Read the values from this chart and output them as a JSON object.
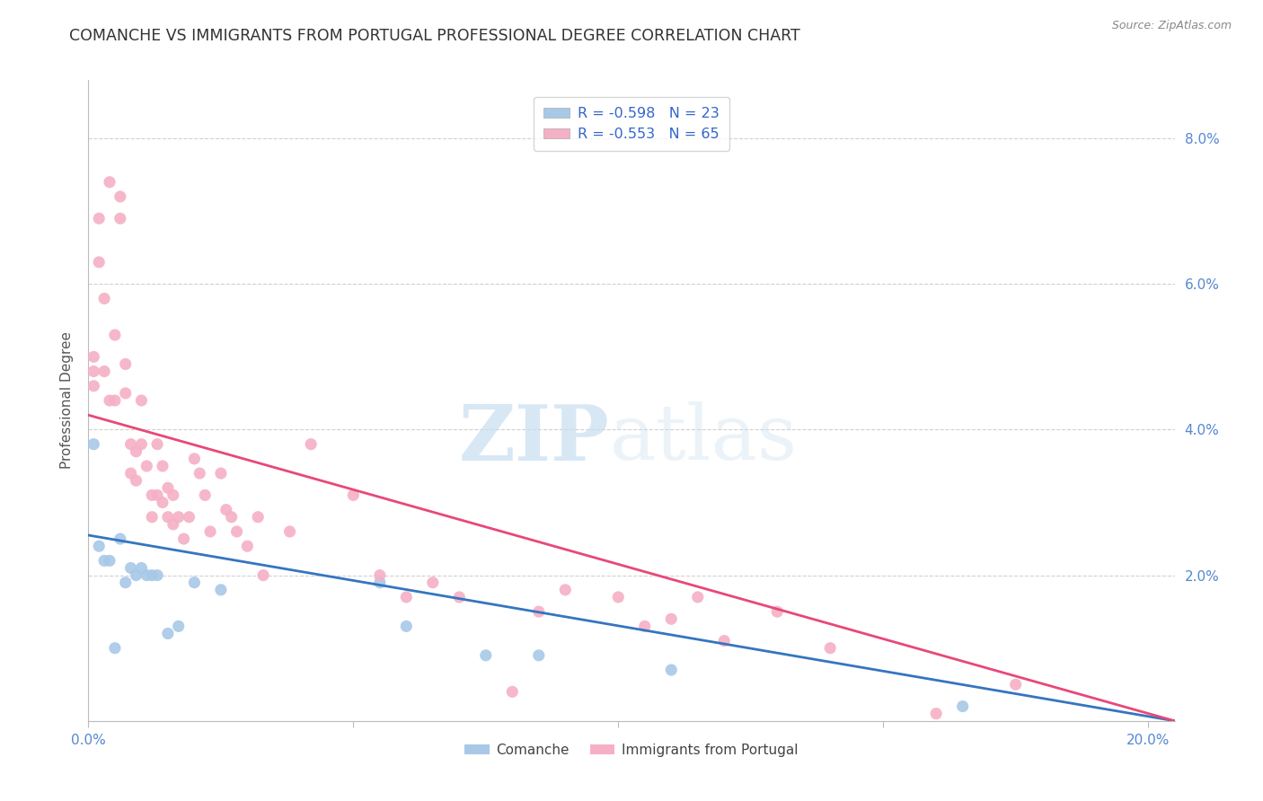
{
  "title": "COMANCHE VS IMMIGRANTS FROM PORTUGAL PROFESSIONAL DEGREE CORRELATION CHART",
  "source": "Source: ZipAtlas.com",
  "ylabel": "Professional Degree",
  "legend_blue_r": "R = -0.598",
  "legend_blue_n": "N = 23",
  "legend_pink_r": "R = -0.553",
  "legend_pink_n": "N = 65",
  "watermark_zip": "ZIP",
  "watermark_atlas": "atlas",
  "xlim": [
    0.0,
    0.205
  ],
  "ylim": [
    0.0,
    0.088
  ],
  "xticks": [
    0.0,
    0.05,
    0.1,
    0.15,
    0.2
  ],
  "xticklabels": [
    "0.0%",
    "",
    "",
    "",
    "20.0%"
  ],
  "yticks": [
    0.0,
    0.02,
    0.04,
    0.06,
    0.08
  ],
  "yticklabels": [
    "",
    "2.0%",
    "4.0%",
    "6.0%",
    "8.0%"
  ],
  "blue_scatter_x": [
    0.001,
    0.002,
    0.003,
    0.004,
    0.005,
    0.006,
    0.007,
    0.008,
    0.009,
    0.01,
    0.011,
    0.012,
    0.013,
    0.015,
    0.017,
    0.02,
    0.025,
    0.055,
    0.06,
    0.075,
    0.085,
    0.11,
    0.165
  ],
  "blue_scatter_y": [
    0.038,
    0.024,
    0.022,
    0.022,
    0.01,
    0.025,
    0.019,
    0.021,
    0.02,
    0.021,
    0.02,
    0.02,
    0.02,
    0.012,
    0.013,
    0.019,
    0.018,
    0.019,
    0.013,
    0.009,
    0.009,
    0.007,
    0.002
  ],
  "pink_scatter_x": [
    0.001,
    0.001,
    0.001,
    0.002,
    0.002,
    0.003,
    0.003,
    0.004,
    0.004,
    0.005,
    0.005,
    0.006,
    0.006,
    0.007,
    0.007,
    0.008,
    0.008,
    0.009,
    0.009,
    0.01,
    0.01,
    0.011,
    0.012,
    0.012,
    0.013,
    0.013,
    0.014,
    0.014,
    0.015,
    0.015,
    0.016,
    0.016,
    0.017,
    0.018,
    0.019,
    0.02,
    0.021,
    0.022,
    0.023,
    0.025,
    0.026,
    0.027,
    0.028,
    0.03,
    0.032,
    0.033,
    0.038,
    0.042,
    0.05,
    0.055,
    0.06,
    0.065,
    0.07,
    0.08,
    0.085,
    0.09,
    0.1,
    0.105,
    0.11,
    0.115,
    0.12,
    0.13,
    0.14,
    0.16,
    0.175
  ],
  "pink_scatter_y": [
    0.05,
    0.048,
    0.046,
    0.069,
    0.063,
    0.058,
    0.048,
    0.074,
    0.044,
    0.053,
    0.044,
    0.072,
    0.069,
    0.049,
    0.045,
    0.034,
    0.038,
    0.037,
    0.033,
    0.038,
    0.044,
    0.035,
    0.031,
    0.028,
    0.038,
    0.031,
    0.035,
    0.03,
    0.032,
    0.028,
    0.031,
    0.027,
    0.028,
    0.025,
    0.028,
    0.036,
    0.034,
    0.031,
    0.026,
    0.034,
    0.029,
    0.028,
    0.026,
    0.024,
    0.028,
    0.02,
    0.026,
    0.038,
    0.031,
    0.02,
    0.017,
    0.019,
    0.017,
    0.004,
    0.015,
    0.018,
    0.017,
    0.013,
    0.014,
    0.017,
    0.011,
    0.015,
    0.01,
    0.001,
    0.005
  ],
  "blue_line_x": [
    0.0,
    0.205
  ],
  "blue_line_y": [
    0.0255,
    0.0
  ],
  "pink_line_x": [
    0.0,
    0.205
  ],
  "pink_line_y": [
    0.042,
    0.0
  ],
  "blue_color": "#a8c8e8",
  "pink_color": "#f5b0c5",
  "blue_line_color": "#3575c0",
  "pink_line_color": "#e84878",
  "scatter_size": 90,
  "grid_color": "#d0d0d0",
  "axis_color": "#bbbbbb",
  "tick_label_color": "#5588d0",
  "background_color": "#ffffff",
  "title_fontsize": 12.5,
  "label_fontsize": 11,
  "tick_fontsize": 11,
  "legend_label_color": "#3366cc"
}
